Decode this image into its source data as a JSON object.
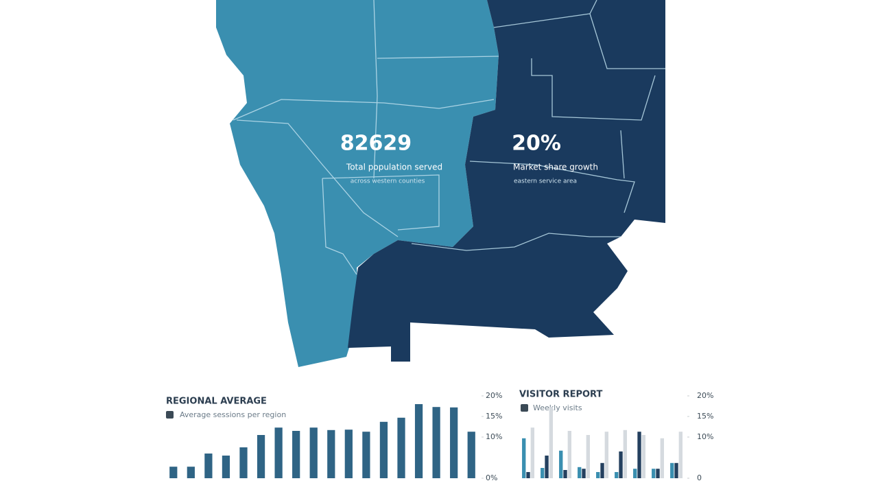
{
  "map": {
    "stats": [
      {
        "value": "82629",
        "label": "Total population served",
        "note": "across western counties"
      },
      {
        "value": "20%",
        "label": "Market share growth",
        "note": "eastern service area"
      }
    ]
  },
  "chart_data": [
    {
      "type": "bar",
      "title": "REGIONAL AVERAGE",
      "subtitle": "Average sessions per region",
      "color": "#2f6485",
      "categories": [
        null,
        null,
        null,
        null,
        null,
        null,
        null,
        null,
        null,
        null,
        null,
        null,
        null,
        null,
        null,
        null,
        null,
        null
      ],
      "values": [
        2.8,
        2.8,
        6,
        5.5,
        7.5,
        10.5,
        12.3,
        11.5,
        12.3,
        11.7,
        11.8,
        11.3,
        13.7,
        14.7,
        18,
        17.3,
        17.2,
        11.3
      ],
      "ylim": [
        0,
        20
      ],
      "yticks": [
        {
          "value": 0,
          "label": "0%"
        },
        {
          "value": 10,
          "label": "10%"
        },
        {
          "value": 15,
          "label": "15%"
        },
        {
          "value": 20,
          "label": "20%"
        }
      ]
    },
    {
      "type": "bar",
      "title": "VISITOR REPORT",
      "subtitle": "Weekly visits",
      "categories": [
        null,
        null,
        null,
        null,
        null,
        null,
        null,
        null,
        null
      ],
      "series": [
        {
          "color": "#3a8fb0",
          "values": [
            9.7,
            2.5,
            6.7,
            2.7,
            1.5,
            1.5,
            2.3,
            2.3,
            3.7
          ]
        },
        {
          "color": "#24405f",
          "values": [
            1.5,
            5.5,
            2.0,
            2.3,
            3.7,
            6.5,
            11.3,
            2.3,
            3.7
          ]
        },
        {
          "color": "#d5dadf",
          "values": [
            12.3,
            17.3,
            11.5,
            10.5,
            11.3,
            11.7,
            10.5,
            9.7,
            11.3
          ]
        }
      ],
      "ylim": [
        0,
        20
      ],
      "yticks": [
        0,
        {
          "value": 10,
          "label": "10%"
        },
        {
          "value": 15,
          "label": "15%"
        },
        {
          "value": 20,
          "label": "20%"
        }
      ]
    }
  ]
}
